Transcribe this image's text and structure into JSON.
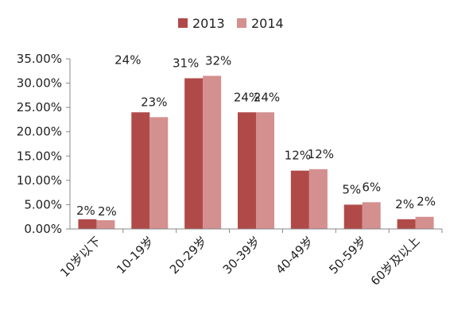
{
  "chart_data": {
    "type": "bar",
    "categories": [
      "10岁以下",
      "10-19岁",
      "20-29岁",
      "30-39岁",
      "40-49岁",
      "50-59岁",
      "60岁及以上"
    ],
    "series": [
      {
        "name": "2013",
        "color": "#b04a48",
        "values": [
          2,
          24,
          31,
          24,
          12,
          5,
          2
        ],
        "labels": [
          "2%",
          "24%",
          "31%",
          "24%",
          "12%",
          "5%",
          "2%"
        ]
      },
      {
        "name": "2014",
        "color": "#d48f8f",
        "values": [
          1.8,
          23,
          31.5,
          24,
          12.3,
          5.5,
          2.5
        ],
        "labels": [
          "2%",
          "23%",
          "32%",
          "24%",
          "12%",
          "6%",
          "2%"
        ]
      }
    ],
    "y_ticks": [
      "0.00%",
      "5.00%",
      "10.00%",
      "15.00%",
      "20.00%",
      "25.00%",
      "30.00%",
      "35.00%"
    ],
    "ylim": [
      0,
      35
    ],
    "legend_position": "top",
    "grid": false
  }
}
